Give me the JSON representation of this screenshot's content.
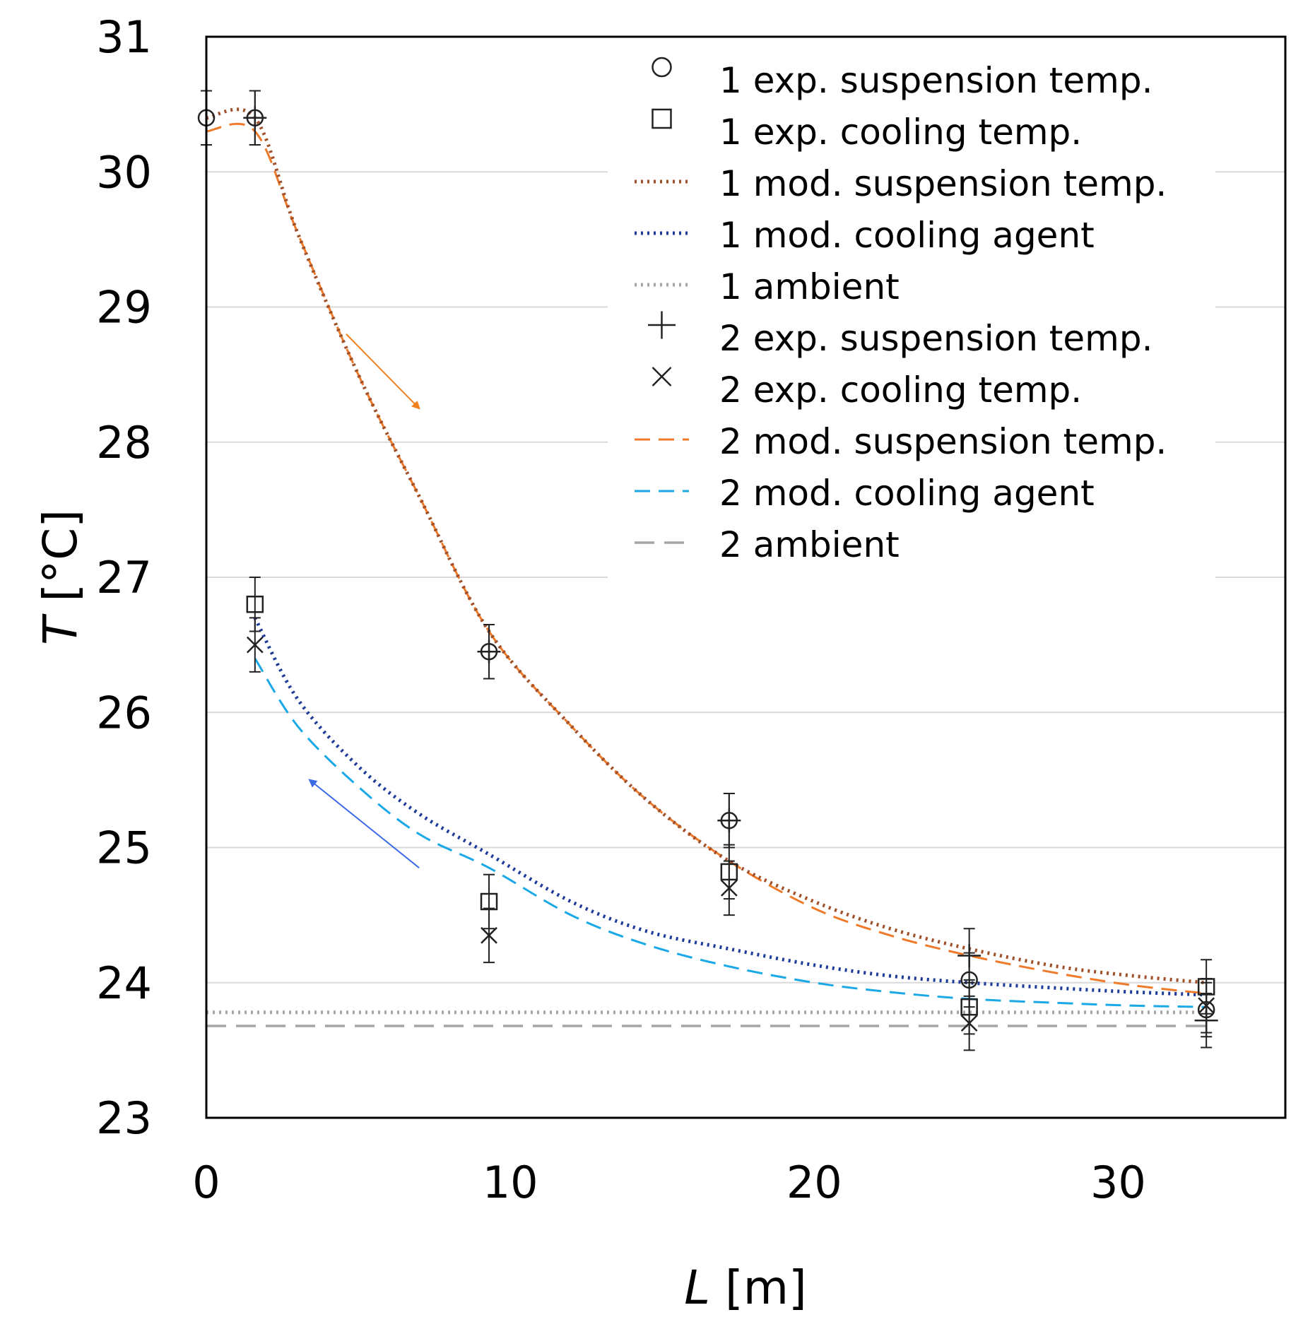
{
  "chart_data": {
    "type": "scatter",
    "title": "",
    "xlabel": "L [m]",
    "xlabel_var": "L",
    "xlabel_unit": " [m]",
    "ylabel": "T [°C]",
    "ylabel_var": "T",
    "ylabel_unit": " [°C]",
    "xlim": [
      0,
      35.5
    ],
    "ylim": [
      23,
      31
    ],
    "xticks": [
      0,
      10,
      20,
      30
    ],
    "yticks": [
      23,
      24,
      25,
      26,
      27,
      28,
      29,
      30,
      31
    ],
    "grid": "horizontal",
    "legend_position": "top-right",
    "colors": {
      "markers": "#222222",
      "mod1_suspension": "#a0502a",
      "mod1_cooling": "#1f3b99",
      "ambient1": "#a6a6a6",
      "mod2_suspension": "#ee7a2a",
      "mod2_cooling": "#1aa9e6",
      "ambient2": "#a6a6a6",
      "arrow_down": "#f0801e",
      "arrow_up": "#3d6ae8",
      "grid": "#d9d9d9"
    },
    "series": [
      {
        "name": "1 exp. suspension temp.",
        "kind": "marker",
        "marker": "circle",
        "x": [
          0,
          1.6,
          9.3,
          17.2,
          25.1,
          32.9
        ],
        "y": [
          30.4,
          30.4,
          26.45,
          25.2,
          24.02,
          23.8
        ],
        "err": 0.2
      },
      {
        "name": "1 exp. cooling temp.",
        "kind": "marker",
        "marker": "square",
        "x": [
          1.6,
          9.3,
          17.2,
          25.1,
          32.9
        ],
        "y": [
          26.8,
          24.6,
          24.82,
          23.82,
          23.97
        ],
        "err": 0.2
      },
      {
        "name": "1 mod. suspension temp.",
        "kind": "line",
        "style": "dotted-brown",
        "x": [
          0,
          1.6,
          3,
          5,
          7,
          9.3,
          12,
          14.5,
          17.2,
          20,
          22.5,
          25.1,
          28,
          30.5,
          32.9
        ],
        "y": [
          30.4,
          30.4,
          29.55,
          28.5,
          27.6,
          26.6,
          25.9,
          25.35,
          24.9,
          24.6,
          24.4,
          24.25,
          24.12,
          24.05,
          24.0
        ]
      },
      {
        "name": "1 mod. cooling agent",
        "kind": "line",
        "style": "dotted-navy",
        "x": [
          1.6,
          3,
          5,
          7,
          9.3,
          12,
          14.5,
          17.2,
          20,
          22.5,
          25.1,
          28,
          30.5,
          32.9
        ],
        "y": [
          26.7,
          26.1,
          25.6,
          25.25,
          24.95,
          24.6,
          24.38,
          24.25,
          24.13,
          24.05,
          24.0,
          23.96,
          23.93,
          23.91
        ]
      },
      {
        "name": "1 ambient",
        "kind": "line",
        "style": "dotted-gray",
        "x": [
          0,
          32.9
        ],
        "y": [
          23.78,
          23.78
        ]
      },
      {
        "name": "2 exp. suspension temp.",
        "kind": "marker",
        "marker": "plus",
        "x": [
          1.6,
          9.3,
          17.2,
          25.1,
          32.9
        ],
        "y": [
          30.4,
          26.45,
          25.2,
          24.2,
          23.72
        ],
        "err": 0.2
      },
      {
        "name": "2 exp. cooling temp.",
        "kind": "marker",
        "marker": "cross",
        "x": [
          1.6,
          9.3,
          17.2,
          25.1,
          32.9
        ],
        "y": [
          26.5,
          24.35,
          24.7,
          23.7,
          23.83
        ],
        "err": 0.2
      },
      {
        "name": "2 mod. suspension temp.",
        "kind": "line",
        "style": "dashed-orange",
        "x": [
          0,
          1.6,
          3,
          5,
          7,
          9.3,
          12,
          14.5,
          17.2,
          20,
          22.5,
          25.1,
          28,
          30.5,
          32.9
        ],
        "y": [
          30.3,
          30.3,
          29.55,
          28.5,
          27.6,
          26.6,
          25.9,
          25.35,
          24.9,
          24.55,
          24.35,
          24.2,
          24.07,
          23.98,
          23.92
        ]
      },
      {
        "name": "2 mod. cooling agent",
        "kind": "line",
        "style": "dashed-cyan",
        "x": [
          1.6,
          3,
          5,
          7,
          9.3,
          12,
          14.5,
          17.2,
          20,
          22.5,
          25.1,
          28,
          30.5,
          32.9
        ],
        "y": [
          26.4,
          25.9,
          25.45,
          25.1,
          24.85,
          24.5,
          24.28,
          24.12,
          24.0,
          23.93,
          23.88,
          23.85,
          23.83,
          23.82
        ]
      },
      {
        "name": "2 ambient",
        "kind": "line",
        "style": "dashed-gray",
        "x": [
          0,
          32.9
        ],
        "y": [
          23.68,
          23.68
        ]
      }
    ],
    "annotations": [
      {
        "type": "arrow",
        "from": [
          4.6,
          28.8
        ],
        "to": [
          7.0,
          28.25
        ],
        "color": "arrow_down"
      },
      {
        "type": "arrow",
        "from": [
          7.0,
          24.85
        ],
        "to": [
          3.4,
          25.5
        ],
        "color": "arrow_up"
      }
    ]
  }
}
